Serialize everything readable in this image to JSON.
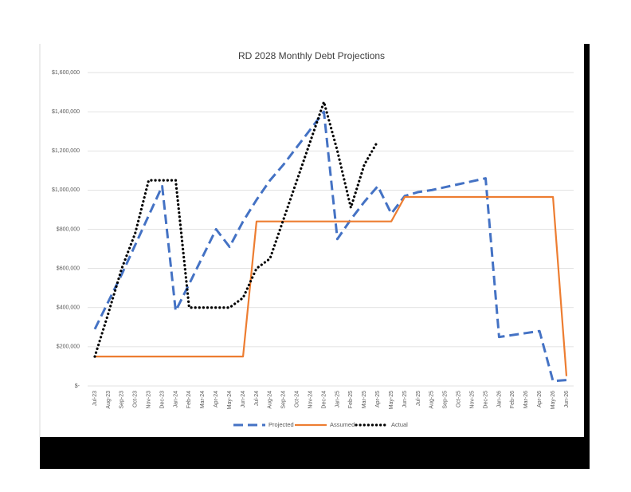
{
  "chart_data": {
    "type": "line",
    "title": "RD 2028 Monthly Debt Projections",
    "categories": [
      "Jul-23",
      "Aug-23",
      "Sep-23",
      "Oct-23",
      "Nov-23",
      "Dec-23",
      "Jan-24",
      "Feb-24",
      "Mar-24",
      "Apr-24",
      "May-24",
      "Jun-24",
      "Jul-24",
      "Aug-24",
      "Sep-24",
      "Oct-24",
      "Nov-24",
      "Dec-24",
      "Jan-25",
      "Feb-25",
      "Mar-25",
      "Apr-25",
      "May-25",
      "Jun-25",
      "Jul-25",
      "Aug-25",
      "Sep-25",
      "Oct-25",
      "Nov-25",
      "Dec-25",
      "Jan-26",
      "Feb-26",
      "Mar-26",
      "Apr-26",
      "May-26",
      "Jun-26"
    ],
    "series": [
      {
        "name": "Projected",
        "color": "#4472c4",
        "style": "dashed",
        "values": [
          290000,
          430000,
          570000,
          720000,
          870000,
          1020000,
          383000,
          520000,
          660000,
          800000,
          710000,
          840000,
          950000,
          1050000,
          1130000,
          1220000,
          1310000,
          1400000,
          750000,
          850000,
          940000,
          1020000,
          880000,
          970000,
          990000,
          1000000,
          1015000,
          1030000,
          1045000,
          1060000,
          250000,
          260000,
          270000,
          280000,
          25000,
          30000
        ]
      },
      {
        "name": "Assumed",
        "color": "#ed7d31",
        "style": "solid",
        "values": [
          150000,
          150000,
          150000,
          150000,
          150000,
          150000,
          150000,
          150000,
          150000,
          150000,
          150000,
          150000,
          840000,
          840000,
          840000,
          840000,
          840000,
          840000,
          840000,
          840000,
          840000,
          840000,
          840000,
          965000,
          965000,
          965000,
          965000,
          965000,
          965000,
          965000,
          965000,
          965000,
          965000,
          965000,
          965000,
          50000
        ]
      },
      {
        "name": "Actual",
        "color": "#000000",
        "style": "dotted",
        "values": [
          150000,
          370000,
          600000,
          780000,
          1050000,
          1050000,
          1050000,
          400000,
          400000,
          400000,
          400000,
          450000,
          600000,
          650000,
          850000,
          1050000,
          1250000,
          1450000,
          1200000,
          910000,
          1130000,
          1250000,
          null,
          null,
          null,
          null,
          null,
          null,
          null,
          null,
          null,
          null,
          null,
          null,
          null,
          null
        ]
      }
    ],
    "ylim": [
      0,
      1600000
    ],
    "yticks": [
      {
        "value": 0,
        "label": "$-"
      },
      {
        "value": 200000,
        "label": "$200,000"
      },
      {
        "value": 400000,
        "label": "$400,000"
      },
      {
        "value": 600000,
        "label": "$600,000"
      },
      {
        "value": 800000,
        "label": "$800,000"
      },
      {
        "value": 1000000,
        "label": "$1,000,000"
      },
      {
        "value": 1200000,
        "label": "$1,200,000"
      },
      {
        "value": 1400000,
        "label": "$1,400,000"
      },
      {
        "value": 1600000,
        "label": "$1,600,000"
      }
    ],
    "grid": true,
    "legend": "bottom"
  }
}
